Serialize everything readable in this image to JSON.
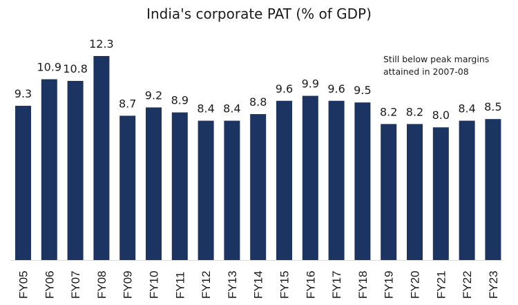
{
  "chart_data": {
    "type": "bar",
    "title": "India's corporate PAT (% of GDP)",
    "xlabel": "",
    "ylabel": "",
    "categories": [
      "FY05",
      "FY06",
      "FY07",
      "FY08",
      "FY09",
      "FY10",
      "FY11",
      "FY12",
      "FY13",
      "FY14",
      "FY15",
      "FY16",
      "FY17",
      "FY18",
      "FY19",
      "FY20",
      "FY21",
      "FY22",
      "FY23"
    ],
    "values": [
      9.3,
      10.9,
      10.8,
      12.3,
      8.7,
      9.2,
      8.9,
      8.4,
      8.4,
      8.8,
      9.6,
      9.9,
      9.6,
      9.5,
      8.2,
      8.2,
      8.0,
      8.4,
      8.5
    ],
    "value_labels": [
      "9.3",
      "10.9",
      "10.8",
      "12.3",
      "8.7",
      "9.2",
      "8.9",
      "8.4",
      "8.4",
      "8.8",
      "9.6",
      "9.9",
      "9.6",
      "9.5",
      "8.2",
      "8.2",
      "8.0",
      "8.4",
      "8.5"
    ],
    "ylim": [
      0,
      12.3
    ],
    "grid": false,
    "legend": "none",
    "bar_color": "#1c3461",
    "annotations": [
      {
        "lines": [
          "Still below peak margins",
          "attained in 2007-08"
        ],
        "position": "top-right"
      }
    ]
  }
}
